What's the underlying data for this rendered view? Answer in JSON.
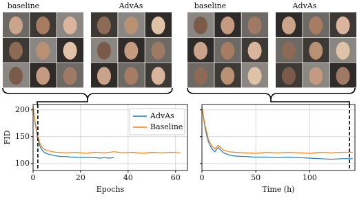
{
  "panels": [
    {
      "labels": [
        "baseline",
        "AdvAs"
      ]
    },
    {
      "labels": [
        "baseline",
        "AdvAs"
      ]
    }
  ],
  "chart_data": [
    {
      "type": "line",
      "xlabel": "Epochs",
      "ylabel": "FID",
      "xlim": [
        0,
        65
      ],
      "ylim": [
        87,
        210
      ],
      "xticks": [
        0,
        20,
        40,
        60
      ],
      "yticks": [
        100,
        150,
        200
      ],
      "ytick_labels": true,
      "grid": true,
      "legend": "upper right",
      "vline": 2,
      "series": [
        {
          "name": "AdvAs",
          "color": "#1f77b4",
          "x": [
            0,
            1,
            2,
            3,
            4,
            5,
            6,
            8,
            10,
            12,
            14,
            16,
            18,
            20,
            22,
            24,
            26,
            28,
            30,
            32,
            34
          ],
          "values": [
            205,
            172,
            146,
            131,
            124,
            120,
            118,
            116,
            114,
            113,
            113,
            112,
            112,
            111,
            112,
            111,
            111,
            110,
            111,
            110,
            111
          ]
        },
        {
          "name": "Baseline",
          "color": "#ff7f0e",
          "x": [
            0,
            1,
            2,
            3,
            4,
            5,
            6,
            8,
            10,
            14,
            18,
            22,
            26,
            30,
            34,
            38,
            42,
            46,
            50,
            54,
            58,
            62
          ],
          "values": [
            205,
            175,
            150,
            136,
            129,
            126,
            124,
            122,
            121,
            120,
            121,
            119,
            121,
            120,
            122,
            120,
            121,
            119,
            121,
            120,
            121,
            120
          ]
        }
      ]
    },
    {
      "type": "line",
      "xlabel": "Time (h)",
      "xlim": [
        0,
        142
      ],
      "ylim": [
        87,
        210
      ],
      "xticks": [
        0,
        50,
        100
      ],
      "yticks": [
        100,
        150,
        200
      ],
      "ytick_labels": false,
      "grid": true,
      "vline": 137,
      "series": [
        {
          "name": "AdvAs",
          "color": "#1f77b4",
          "x": [
            0,
            3,
            6,
            9,
            12,
            15,
            20,
            25,
            30,
            40,
            50,
            60,
            70,
            80,
            90,
            100,
            110,
            120,
            130,
            140
          ],
          "values": [
            205,
            165,
            140,
            128,
            122,
            130,
            120,
            116,
            114,
            113,
            112,
            112,
            111,
            112,
            111,
            110,
            109,
            108,
            109,
            109
          ]
        },
        {
          "name": "Baseline",
          "color": "#ff7f0e",
          "x": [
            0,
            3,
            6,
            9,
            12,
            15,
            20,
            25,
            30,
            40,
            50,
            60,
            70,
            80,
            90,
            100,
            110,
            120,
            130,
            140
          ],
          "values": [
            205,
            170,
            145,
            133,
            127,
            134,
            125,
            122,
            121,
            120,
            119,
            121,
            120,
            121,
            120,
            119,
            121,
            120,
            121,
            121
          ]
        }
      ]
    }
  ]
}
